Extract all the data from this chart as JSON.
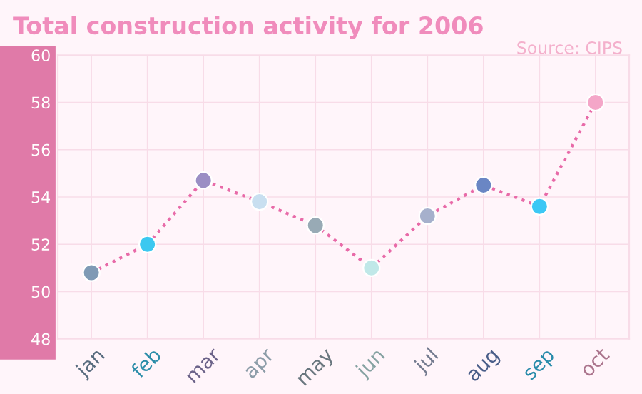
{
  "chart_data": {
    "type": "line",
    "title": "Total construction activity for 2006",
    "annotations": [
      "Source: CIPS"
    ],
    "categories": [
      "jan",
      "feb",
      "mar",
      "apr",
      "may",
      "jun",
      "jul",
      "aug",
      "sep",
      "oct"
    ],
    "series": [
      {
        "color": "#e86aa8",
        "values": [
          50.8,
          52.0,
          54.7,
          53.8,
          52.8,
          51.0,
          53.2,
          54.5,
          53.6,
          58.0
        ],
        "colors": [
          "#7f9ab5",
          "#3cc8f0",
          "#9b8ec4",
          "#c8dff0",
          "#98aab5",
          "#c0e8e8",
          "#a6b0cc",
          "#6a86c4",
          "#3cc8f5",
          "#f4a6c8"
        ]
      }
    ],
    "ylim": [
      48,
      60
    ],
    "yticks": [
      48,
      50,
      52,
      54,
      56,
      58,
      60
    ],
    "grid": true,
    "marker": "circle",
    "line_style": "dotted"
  }
}
